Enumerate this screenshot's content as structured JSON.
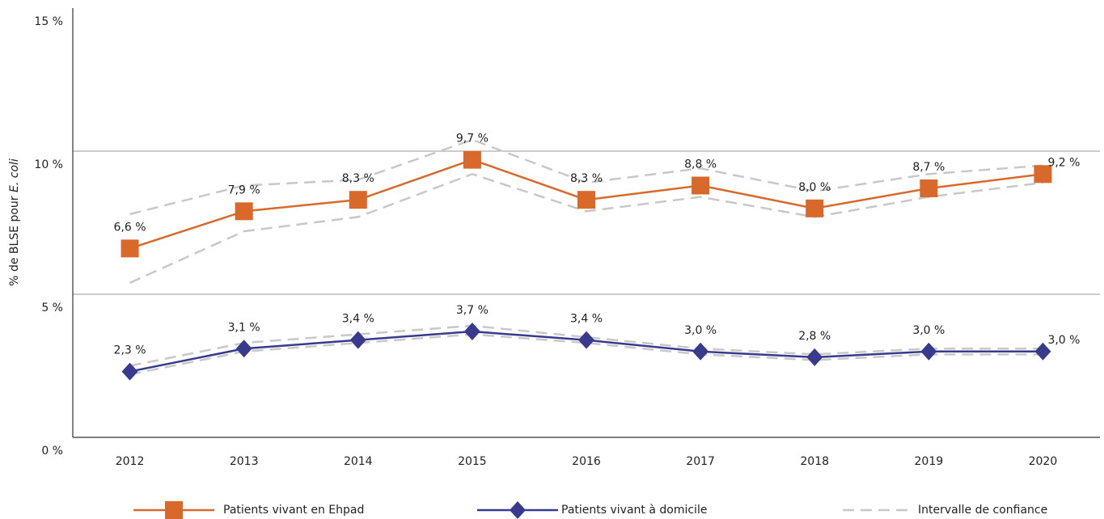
{
  "chart_data": {
    "type": "line",
    "y_label": "% de BLSE pour ",
    "y_label_italic": "E. coli",
    "categories": [
      "2012",
      "2013",
      "2014",
      "2015",
      "2016",
      "2017",
      "2018",
      "2019",
      "2020"
    ],
    "ylim": [
      0,
      15
    ],
    "yticks": [
      {
        "value": 0,
        "label": "0 %"
      },
      {
        "value": 5,
        "label": "5 %"
      },
      {
        "value": 10,
        "label": "10 %"
      },
      {
        "value": 15,
        "label": "15 %"
      }
    ],
    "grid": true,
    "series": [
      {
        "name": "Patients vivant en Ehpad",
        "color": "#d8692b",
        "marker": "square",
        "values": [
          6.6,
          7.9,
          8.3,
          9.7,
          8.3,
          8.8,
          8.0,
          8.7,
          9.2
        ],
        "value_labels": [
          "6,6 %",
          "7,9 %",
          "8,3 %",
          "9,7 %",
          "8,3 %",
          "8,8 %",
          "8,0 %",
          "8,7 %",
          "9,2 %"
        ]
      },
      {
        "name": "Patients vivant à domicile",
        "color": "#383a8e",
        "marker": "diamond",
        "values": [
          2.3,
          3.1,
          3.4,
          3.7,
          3.4,
          3.0,
          2.8,
          3.0,
          3.0
        ],
        "value_labels": [
          "2,3 %",
          "3,1 %",
          "3,4 %",
          "3,7 %",
          "3,4 %",
          "3,0 %",
          "2,8 %",
          "3,0 %",
          "3,0 %"
        ]
      }
    ],
    "confidence_interval": {
      "name": "Intervalle de confiance",
      "color": "#c8c8c8",
      "bands": [
        {
          "upper": [
            7.8,
            8.8,
            9.0,
            10.4,
            8.9,
            9.4,
            8.6,
            9.2,
            9.5
          ],
          "lower": [
            5.4,
            7.2,
            7.7,
            9.2,
            7.9,
            8.4,
            7.7,
            8.4,
            8.9
          ]
        },
        {
          "upper": [
            2.5,
            3.3,
            3.6,
            3.9,
            3.5,
            3.1,
            2.9,
            3.1,
            3.1
          ],
          "lower": [
            2.2,
            3.0,
            3.3,
            3.6,
            3.3,
            2.9,
            2.7,
            2.9,
            2.9
          ]
        }
      ]
    }
  }
}
